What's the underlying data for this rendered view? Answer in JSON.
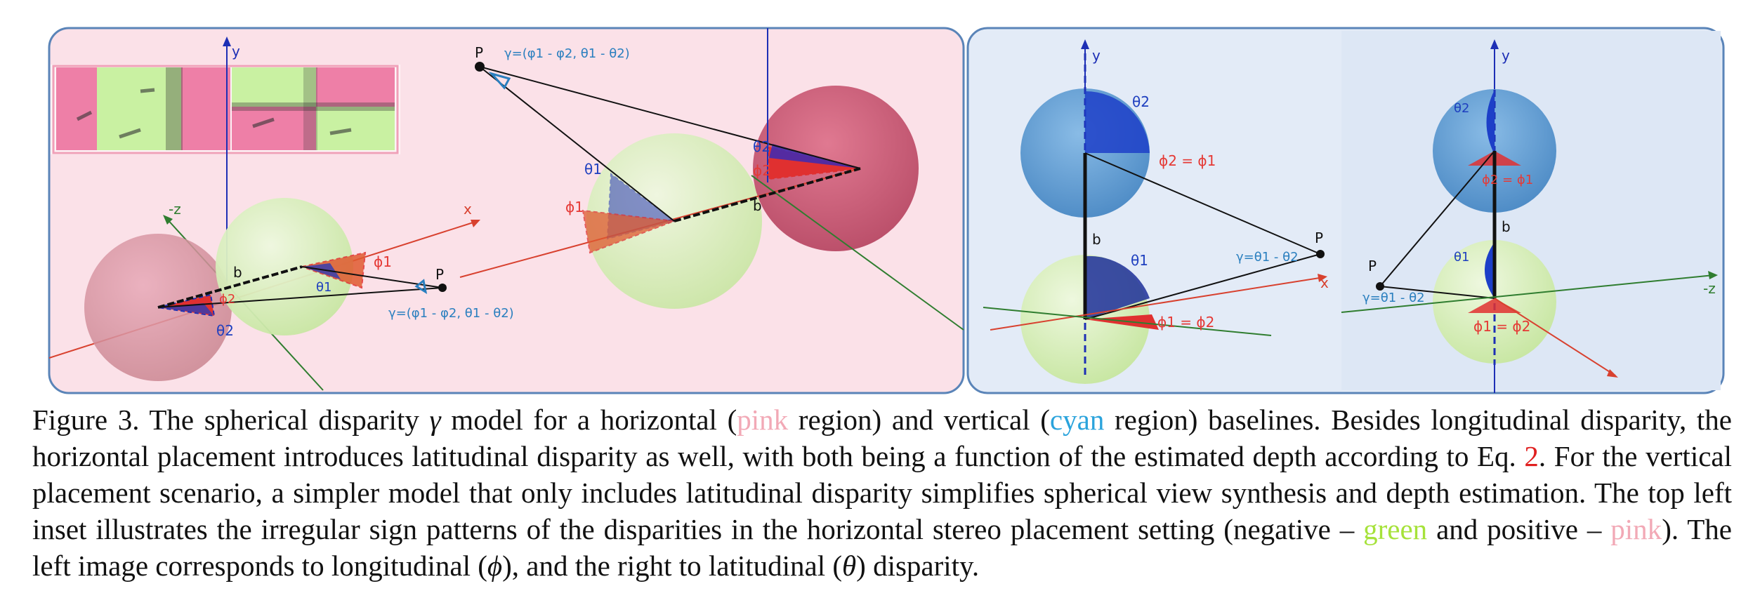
{
  "colors": {
    "pink_panel": "#fbe1e8",
    "cyan_panel": "#e3ebf7",
    "green_sphere": "#d6efb6",
    "pink_sphere": "#d9718a",
    "blue_sphere": "#4a94cf",
    "axis_red": "#d8412f",
    "axis_green": "#2f7d2f",
    "axis_blue": "#1d2fb5",
    "label_red": "#e53935",
    "label_blue": "#1e3fbf",
    "label_cyan": "#2a7fbf"
  },
  "labels": {
    "left": {
      "y": "y",
      "z": "-z",
      "x": "x",
      "b_small": "b",
      "phi1_small": "ϕ1",
      "phi2_small": "ϕ2",
      "theta1_small": "θ1",
      "theta2_small": "θ2",
      "P_small": "P",
      "gamma_small": "γ=(φ1 - φ2, θ1 - θ2)",
      "P_big": "P",
      "gamma_big": "γ=(φ1 - φ2, θ1 - θ2)",
      "theta1_big": "θ1",
      "phi1_big": "ϕ1",
      "theta2_big": "θ2",
      "phi2_big": "ϕ2",
      "b_big": "b"
    },
    "right": {
      "y1": "y",
      "theta2_a": "θ2",
      "phi_eq_a": "ϕ2 = ϕ1",
      "b_a": "b",
      "theta1_a": "θ1",
      "P_a": "P",
      "gamma_a": "γ=θ1 - θ2",
      "x_a": "x",
      "phi_eq_b": "ϕ1 = ϕ2",
      "y2": "y",
      "theta2_b": "θ2",
      "phi_eq_c": "ϕ2 = ϕ1",
      "b_b": "b",
      "theta1_b": "θ1",
      "P_b": "P",
      "gamma_b": "γ=θ1 - θ2",
      "z_b": "-z",
      "phi_eq_d": "ϕ1 = ϕ2"
    }
  },
  "caption": {
    "p1": "Figure 3. The spherical disparity ",
    "gamma": "γ",
    "p2": " model for a horizontal (",
    "pink": "pink",
    "p3": " region) and vertical (",
    "cyan": "cyan",
    "p4": " region) baselines. Besides longitudinal disparity, the horizontal placement introduces latitudinal disparity as well, with both being a function of the estimated depth according to Eq. ",
    "eq": "2",
    "p5": ". For the vertical placement scenario, a simpler model that only includes latitudinal disparity simplifies spherical view synthesis and depth estimation. The top left inset illustrates the irregular sign patterns of the disparities in the horizontal stereo placement setting (negative – ",
    "green": "green",
    "p6": " and positive – ",
    "pink2": "pink",
    "p7": "). The left image corresponds to longitudinal (",
    "phi": "ϕ",
    "p8": "), and the right to latitudinal (",
    "theta": "θ",
    "p9": ") disparity."
  }
}
